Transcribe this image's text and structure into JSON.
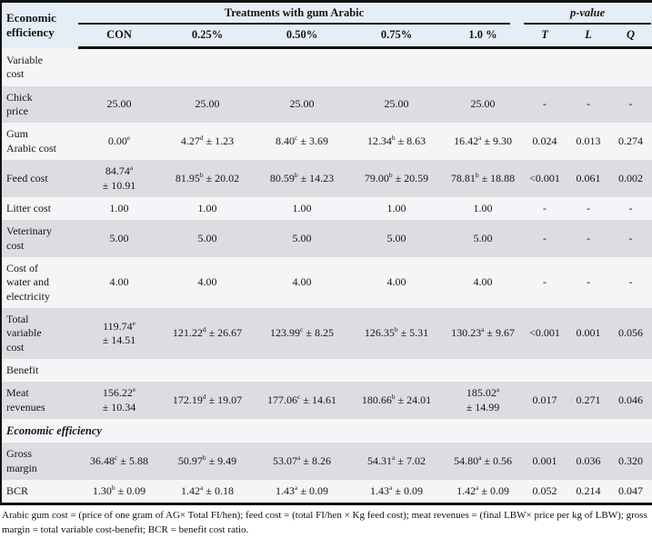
{
  "header": {
    "row_label_col": "Economic\nefficiency",
    "treatments_group": "Treatments with gum Arabic",
    "pvalue_group": "p-value",
    "columns": [
      "CON",
      "0.25%",
      "0.50%",
      "0.75%",
      "1.0 %"
    ],
    "pvalue_columns": [
      "T",
      "L",
      "Q"
    ]
  },
  "rows": [
    {
      "type": "section",
      "label": "Variable\ncost"
    },
    {
      "type": "data",
      "label": "Chick\nprice",
      "values": [
        "25.00",
        "25.00",
        "25.00",
        "25.00",
        "25.00",
        "-",
        "-",
        "-"
      ]
    },
    {
      "type": "data",
      "label": "Gum\nArabic cost",
      "values": [
        "0.00^e",
        "4.27^d ± 1.23",
        "8.40^c ± 3.69",
        "12.34^b ± 8.63",
        "16.42^a ± 9.30",
        "0.024",
        "0.013",
        "0.274"
      ]
    },
    {
      "type": "data",
      "label": "Feed cost",
      "values": [
        "84.74^a\n± 10.91",
        "81.95^b ± 20.02",
        "80.59^b ± 14.23",
        "79.00^b ± 20.59",
        "78.81^b ± 18.88",
        "<0.001",
        "0.061",
        "0.002"
      ]
    },
    {
      "type": "data",
      "label": "Litter cost",
      "values": [
        "1.00",
        "1.00",
        "1.00",
        "1.00",
        "1.00",
        "-",
        "-",
        "-"
      ]
    },
    {
      "type": "data",
      "label": "Veterinary\ncost",
      "values": [
        "5.00",
        "5.00",
        "5.00",
        "5.00",
        "5.00",
        "-",
        "-",
        "-"
      ]
    },
    {
      "type": "data",
      "label": "Cost of\nwater and\nelectricity",
      "values": [
        "4.00",
        "4.00",
        "4.00",
        "4.00",
        "4.00",
        "-",
        "-",
        "-"
      ]
    },
    {
      "type": "data",
      "label": "Total\nvariable\ncost",
      "values": [
        "119.74^e\n± 14.51",
        "121.22^d ± 26.67",
        "123.99^c ± 8.25",
        "126.35^b ± 5.31",
        "130.23^a ± 9.67",
        "<0.001",
        "0.001",
        "0.056"
      ]
    },
    {
      "type": "section",
      "label": "Benefit"
    },
    {
      "type": "data",
      "label": "Meat\nrevenues",
      "values": [
        "156.22^e\n± 10.34",
        "172.19^d ± 19.07",
        "177.06^c ± 14.61",
        "180.66^b ± 24.01",
        "185.02^a\n± 14.99",
        "0.017",
        "0.271",
        "0.046"
      ]
    },
    {
      "type": "section",
      "label": "Economic efficiency",
      "style": "bold-italic"
    },
    {
      "type": "data",
      "label": "Gross\nmargin",
      "values": [
        "36.48^c ± 5.88",
        "50.97^b ± 9.49",
        "53.07^a ± 8.26",
        "54.31^a ± 7.02",
        "54.80^a ± 0.56",
        "0.001",
        "0.036",
        "0.320"
      ]
    },
    {
      "type": "data",
      "label": "BCR",
      "values": [
        "1.30^b ± 0.09",
        "1.42^a ± 0.18",
        "1.43^a ± 0.09",
        "1.43^a ± 0.09",
        "1.42^a ± 0.09",
        "0.052",
        "0.214",
        "0.047"
      ]
    }
  ],
  "footnote": "Arabic gum cost = (price of one gram of AG× Total FI/hen); feed cost = (total FI/hen × Kg feed cost); meat revenues = (final LBW× price per kg of LBW); gross margin = total variable cost-benefit; BCR = benefit cost ratio.",
  "colors": {
    "header_bg": "#e5eef7",
    "row_light": "#f4f5f7",
    "row_gray": "#dcdde0",
    "border": "#121212"
  }
}
